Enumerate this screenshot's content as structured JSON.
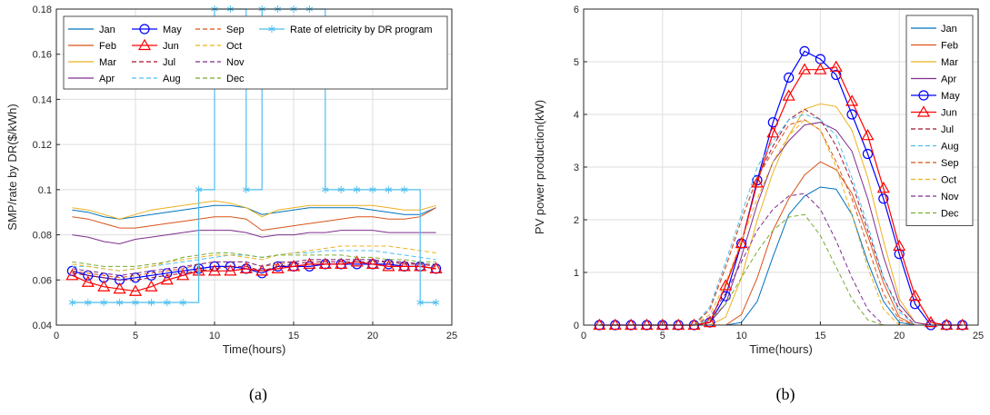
{
  "chart_data": [
    {
      "type": "line",
      "panel_label": "(a)",
      "xlabel": "Time(hours)",
      "ylabel": "SMP/rate by DR($/kWh)",
      "xlim": [
        0,
        25
      ],
      "ylim": [
        0.04,
        0.18
      ],
      "xticks": [
        0,
        5,
        10,
        15,
        20,
        25
      ],
      "yticks": [
        0.04,
        0.06,
        0.08,
        0.1,
        0.12,
        0.14,
        0.16,
        0.18
      ],
      "ytick_labels": [
        "0.04",
        "0.06",
        "0.08",
        "0.1",
        "0.12",
        "0.14",
        "0.16",
        "0.18"
      ],
      "grid": true,
      "legend_placement": "top",
      "x": [
        1,
        2,
        3,
        4,
        5,
        6,
        7,
        8,
        9,
        10,
        11,
        12,
        13,
        14,
        15,
        16,
        17,
        18,
        19,
        20,
        21,
        22,
        23,
        24
      ],
      "series": [
        {
          "name": "Jan",
          "color": "#0072BD",
          "style": "solid",
          "marker": "none",
          "values": [
            0.091,
            0.09,
            0.088,
            0.087,
            0.088,
            0.089,
            0.09,
            0.091,
            0.092,
            0.093,
            0.093,
            0.092,
            0.089,
            0.09,
            0.091,
            0.092,
            0.092,
            0.092,
            0.092,
            0.091,
            0.09,
            0.089,
            0.089,
            0.092
          ]
        },
        {
          "name": "Feb",
          "color": "#D95319",
          "style": "solid",
          "marker": "none",
          "values": [
            0.088,
            0.087,
            0.085,
            0.083,
            0.083,
            0.084,
            0.085,
            0.086,
            0.087,
            0.088,
            0.088,
            0.087,
            0.082,
            0.083,
            0.084,
            0.085,
            0.086,
            0.087,
            0.088,
            0.088,
            0.087,
            0.087,
            0.088,
            0.092
          ]
        },
        {
          "name": "Mar",
          "color": "#EDB120",
          "style": "solid",
          "marker": "none",
          "values": [
            0.092,
            0.091,
            0.089,
            0.087,
            0.089,
            0.091,
            0.092,
            0.093,
            0.094,
            0.095,
            0.094,
            0.092,
            0.088,
            0.091,
            0.092,
            0.093,
            0.093,
            0.093,
            0.093,
            0.093,
            0.092,
            0.091,
            0.091,
            0.093
          ]
        },
        {
          "name": "Apr",
          "color": "#7E2F8E",
          "style": "solid",
          "marker": "none",
          "values": [
            0.08,
            0.079,
            0.077,
            0.076,
            0.078,
            0.079,
            0.08,
            0.081,
            0.082,
            0.082,
            0.082,
            0.081,
            0.079,
            0.08,
            0.08,
            0.081,
            0.081,
            0.082,
            0.082,
            0.082,
            0.081,
            0.081,
            0.081,
            0.081
          ]
        },
        {
          "name": "May",
          "color": "#0000FF",
          "style": "solid",
          "marker": "circle",
          "values": [
            0.064,
            0.062,
            0.061,
            0.06,
            0.061,
            0.062,
            0.063,
            0.064,
            0.065,
            0.066,
            0.066,
            0.065,
            0.063,
            0.066,
            0.066,
            0.066,
            0.067,
            0.067,
            0.067,
            0.067,
            0.067,
            0.066,
            0.066,
            0.065
          ]
        },
        {
          "name": "Jun",
          "color": "#FF0000",
          "style": "solid",
          "marker": "triangle",
          "values": [
            0.062,
            0.059,
            0.057,
            0.056,
            0.055,
            0.057,
            0.06,
            0.062,
            0.064,
            0.064,
            0.064,
            0.065,
            0.064,
            0.065,
            0.066,
            0.067,
            0.067,
            0.067,
            0.068,
            0.067,
            0.066,
            0.066,
            0.066,
            0.065
          ]
        },
        {
          "name": "Jul",
          "color": "#A2142F",
          "style": "dashed",
          "marker": "none",
          "values": [
            0.063,
            0.062,
            0.061,
            0.06,
            0.06,
            0.061,
            0.062,
            0.063,
            0.064,
            0.065,
            0.066,
            0.066,
            0.064,
            0.066,
            0.067,
            0.068,
            0.068,
            0.068,
            0.068,
            0.068,
            0.068,
            0.067,
            0.067,
            0.066
          ]
        },
        {
          "name": "Aug",
          "color": "#4DBEEE",
          "style": "dashed",
          "marker": "none",
          "values": [
            0.066,
            0.066,
            0.065,
            0.064,
            0.065,
            0.066,
            0.067,
            0.068,
            0.069,
            0.07,
            0.071,
            0.071,
            0.07,
            0.071,
            0.072,
            0.072,
            0.073,
            0.073,
            0.073,
            0.073,
            0.072,
            0.071,
            0.07,
            0.069
          ]
        },
        {
          "name": "Sep",
          "color": "#D95319",
          "style": "dashed",
          "marker": "none",
          "values": [
            0.064,
            0.063,
            0.062,
            0.061,
            0.062,
            0.063,
            0.064,
            0.065,
            0.067,
            0.068,
            0.068,
            0.068,
            0.066,
            0.067,
            0.068,
            0.069,
            0.069,
            0.069,
            0.069,
            0.069,
            0.068,
            0.068,
            0.067,
            0.066
          ]
        },
        {
          "name": "Oct",
          "color": "#EDB120",
          "style": "dashed",
          "marker": "none",
          "values": [
            0.067,
            0.066,
            0.065,
            0.064,
            0.065,
            0.066,
            0.068,
            0.069,
            0.07,
            0.071,
            0.071,
            0.07,
            0.069,
            0.071,
            0.072,
            0.073,
            0.074,
            0.075,
            0.075,
            0.075,
            0.075,
            0.074,
            0.073,
            0.072
          ]
        },
        {
          "name": "Nov",
          "color": "#7E2F8E",
          "style": "dashed",
          "marker": "none",
          "values": [
            0.065,
            0.064,
            0.063,
            0.062,
            0.063,
            0.064,
            0.065,
            0.066,
            0.067,
            0.068,
            0.068,
            0.068,
            0.066,
            0.068,
            0.068,
            0.069,
            0.069,
            0.069,
            0.069,
            0.069,
            0.068,
            0.068,
            0.067,
            0.067
          ]
        },
        {
          "name": "Dec",
          "color": "#77AC30",
          "style": "dashed",
          "marker": "none",
          "values": [
            0.068,
            0.067,
            0.066,
            0.066,
            0.066,
            0.067,
            0.068,
            0.07,
            0.071,
            0.072,
            0.072,
            0.071,
            0.07,
            0.071,
            0.071,
            0.071,
            0.071,
            0.071,
            0.07,
            0.07,
            0.069,
            0.069,
            0.068,
            0.068
          ]
        },
        {
          "name": "Rate of eletricity by DR program",
          "color": "#4DBEEE",
          "style": "step",
          "marker": "asterisk",
          "values": [
            0.05,
            0.05,
            0.05,
            0.05,
            0.05,
            0.05,
            0.05,
            0.05,
            0.1,
            0.18,
            0.18,
            0.1,
            0.18,
            0.18,
            0.18,
            0.18,
            0.1,
            0.1,
            0.1,
            0.1,
            0.1,
            0.1,
            0.05,
            0.05
          ]
        }
      ]
    },
    {
      "type": "line",
      "panel_label": "(b)",
      "xlabel": "Time(hours)",
      "ylabel": "PV power production(kW)",
      "xlim": [
        0,
        25
      ],
      "ylim": [
        0,
        6
      ],
      "xticks": [
        0,
        5,
        10,
        15,
        20,
        25
      ],
      "yticks": [
        0,
        1,
        2,
        3,
        4,
        5,
        6
      ],
      "ytick_labels": [
        "0",
        "1",
        "2",
        "3",
        "4",
        "5",
        "6"
      ],
      "grid": true,
      "legend_placement": "top-right",
      "x": [
        1,
        2,
        3,
        4,
        5,
        6,
        7,
        8,
        9,
        10,
        11,
        12,
        13,
        14,
        15,
        16,
        17,
        18,
        19,
        20,
        21,
        22,
        23,
        24
      ],
      "series": [
        {
          "name": "Jan",
          "color": "#0072BD",
          "style": "solid",
          "marker": "none",
          "values": [
            0,
            0,
            0,
            0,
            0,
            0,
            0,
            0,
            0,
            0.05,
            0.45,
            1.3,
            2.1,
            2.45,
            2.62,
            2.58,
            2.1,
            1.2,
            0.45,
            0.05,
            0,
            0,
            0,
            0
          ]
        },
        {
          "name": "Feb",
          "color": "#D95319",
          "style": "solid",
          "marker": "none",
          "values": [
            0,
            0,
            0,
            0,
            0,
            0,
            0,
            0,
            0,
            0.2,
            0.9,
            1.8,
            2.4,
            2.85,
            3.1,
            2.95,
            2.5,
            1.7,
            0.8,
            0.15,
            0,
            0,
            0,
            0
          ]
        },
        {
          "name": "Mar",
          "color": "#EDB120",
          "style": "solid",
          "marker": "none",
          "values": [
            0,
            0,
            0,
            0,
            0,
            0,
            0,
            0,
            0.15,
            0.9,
            2.0,
            2.9,
            3.6,
            4.1,
            4.2,
            4.15,
            3.7,
            2.8,
            1.6,
            0.5,
            0.05,
            0,
            0,
            0
          ]
        },
        {
          "name": "Apr",
          "color": "#7E2F8E",
          "style": "solid",
          "marker": "none",
          "values": [
            0,
            0,
            0,
            0,
            0,
            0,
            0,
            0.05,
            0.4,
            1.3,
            2.3,
            3.1,
            3.5,
            3.8,
            3.85,
            3.7,
            3.3,
            2.4,
            1.3,
            0.4,
            0.05,
            0,
            0,
            0
          ]
        },
        {
          "name": "May",
          "color": "#0000FF",
          "style": "solid",
          "marker": "circle",
          "values": [
            0,
            0,
            0,
            0,
            0,
            0,
            0,
            0.05,
            0.55,
            1.55,
            2.75,
            3.85,
            4.7,
            5.2,
            5.05,
            4.75,
            4.0,
            3.25,
            2.4,
            1.35,
            0.4,
            0,
            0,
            0
          ]
        },
        {
          "name": "Jun",
          "color": "#FF0000",
          "style": "solid",
          "marker": "triangle",
          "values": [
            0,
            0,
            0,
            0,
            0,
            0,
            0,
            0.05,
            0.75,
            1.55,
            2.7,
            3.65,
            4.35,
            4.85,
            4.85,
            4.9,
            4.25,
            3.6,
            2.6,
            1.5,
            0.55,
            0.05,
            0,
            0
          ]
        },
        {
          "name": "Jul",
          "color": "#A2142F",
          "style": "dashed",
          "marker": "none",
          "values": [
            0,
            0,
            0,
            0,
            0,
            0,
            0,
            0.3,
            1.1,
            2.0,
            2.8,
            3.4,
            3.9,
            4.1,
            3.9,
            3.4,
            2.7,
            1.8,
            0.9,
            0.3,
            0,
            0,
            0,
            0
          ]
        },
        {
          "name": "Aug",
          "color": "#4DBEEE",
          "style": "dashed",
          "marker": "none",
          "values": [
            0,
            0,
            0,
            0,
            0,
            0,
            0,
            0.35,
            1.2,
            2.1,
            3.0,
            3.5,
            3.9,
            4.0,
            3.9,
            3.6,
            2.8,
            1.9,
            0.9,
            0.25,
            0,
            0,
            0,
            0
          ]
        },
        {
          "name": "Sep",
          "color": "#D95319",
          "style": "dashed",
          "marker": "none",
          "values": [
            0,
            0,
            0,
            0,
            0,
            0,
            0,
            0.3,
            1.1,
            2.0,
            2.8,
            3.3,
            3.8,
            3.9,
            3.7,
            3.1,
            2.4,
            1.5,
            0.6,
            0.1,
            0,
            0,
            0,
            0
          ]
        },
        {
          "name": "Oct",
          "color": "#EDB120",
          "style": "dashed",
          "marker": "none",
          "values": [
            0,
            0,
            0,
            0,
            0,
            0,
            0,
            0.2,
            0.8,
            1.6,
            2.4,
            3.1,
            3.6,
            3.9,
            3.7,
            3.0,
            2.1,
            1.1,
            0.3,
            0,
            0,
            0,
            0,
            0
          ]
        },
        {
          "name": "Nov",
          "color": "#7E2F8E",
          "style": "dashed",
          "marker": "none",
          "values": [
            0,
            0,
            0,
            0,
            0,
            0,
            0,
            0.15,
            0.6,
            1.2,
            1.8,
            2.2,
            2.45,
            2.5,
            2.2,
            1.6,
            0.9,
            0.3,
            0,
            0,
            0,
            0,
            0,
            0
          ]
        },
        {
          "name": "Dec",
          "color": "#77AC30",
          "style": "dashed",
          "marker": "none",
          "values": [
            0,
            0,
            0,
            0,
            0,
            0,
            0,
            0.1,
            0.4,
            0.9,
            1.4,
            1.8,
            2.05,
            2.1,
            1.7,
            1.1,
            0.5,
            0.1,
            0,
            0,
            0,
            0,
            0,
            0
          ]
        }
      ]
    }
  ]
}
